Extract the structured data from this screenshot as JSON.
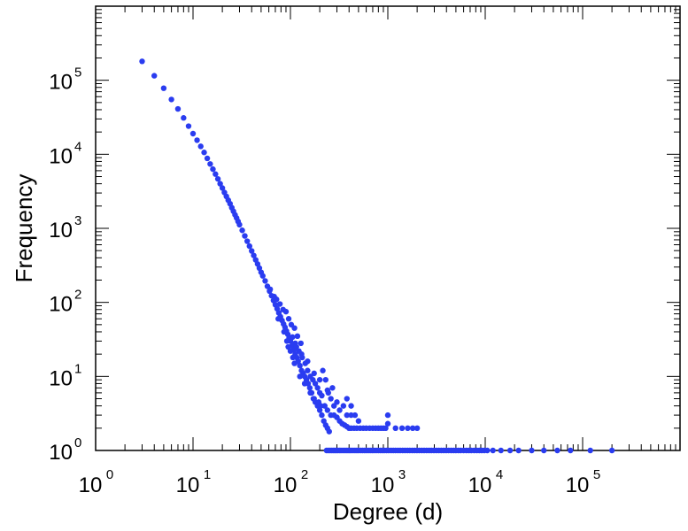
{
  "chart_data": {
    "type": "scatter",
    "xlabel": "Degree (d)",
    "ylabel": "Frequency",
    "x_scale": "log",
    "y_scale": "log",
    "xlim": [
      1,
      1000000
    ],
    "ylim": [
      1,
      1000000
    ],
    "grid": false,
    "legend": "none",
    "marker_color": "#2a3cf0",
    "x_ticks": [
      {
        "base": "10",
        "exp": "0"
      },
      {
        "base": "10",
        "exp": "1"
      },
      {
        "base": "10",
        "exp": "2"
      },
      {
        "base": "10",
        "exp": "3"
      },
      {
        "base": "10",
        "exp": "4"
      },
      {
        "base": "10",
        "exp": "5"
      }
    ],
    "y_ticks": [
      {
        "base": "10",
        "exp": "0"
      },
      {
        "base": "10",
        "exp": "1"
      },
      {
        "base": "10",
        "exp": "2"
      },
      {
        "base": "10",
        "exp": "3"
      },
      {
        "base": "10",
        "exp": "4"
      },
      {
        "base": "10",
        "exp": "5"
      }
    ],
    "points": [
      [
        3,
        180000
      ],
      [
        4,
        115000
      ],
      [
        5,
        78000
      ],
      [
        6,
        55000
      ],
      [
        7,
        41000
      ],
      [
        8,
        31000
      ],
      [
        9,
        24000
      ],
      [
        10,
        19000
      ],
      [
        11,
        15500
      ],
      [
        12,
        12800
      ],
      [
        13,
        10600
      ],
      [
        14,
        8800
      ],
      [
        15,
        7400
      ],
      [
        16,
        6300
      ],
      [
        17,
        5400
      ],
      [
        18,
        4650
      ],
      [
        19,
        4000
      ],
      [
        20,
        3500
      ],
      [
        21,
        3050
      ],
      [
        22,
        2700
      ],
      [
        23,
        2400
      ],
      [
        24,
        2150
      ],
      [
        25,
        1900
      ],
      [
        26,
        1700
      ],
      [
        27,
        1520
      ],
      [
        28,
        1380
      ],
      [
        29,
        1240
      ],
      [
        30,
        1120
      ],
      [
        32,
        940
      ],
      [
        34,
        790
      ],
      [
        36,
        670
      ],
      [
        38,
        575
      ],
      [
        40,
        495
      ],
      [
        42,
        430
      ],
      [
        44,
        375
      ],
      [
        46,
        330
      ],
      [
        48,
        290
      ],
      [
        50,
        255
      ],
      [
        52,
        228
      ],
      [
        55,
        195
      ],
      [
        58,
        165
      ],
      [
        61,
        142
      ],
      [
        64,
        123
      ],
      [
        67,
        106
      ],
      [
        70,
        93
      ],
      [
        73,
        82
      ],
      [
        76,
        72
      ],
      [
        79,
        64
      ],
      [
        82,
        57
      ],
      [
        85,
        51
      ],
      [
        88,
        46
      ],
      [
        91,
        41
      ],
      [
        94,
        37
      ],
      [
        97,
        33
      ],
      [
        100,
        30
      ],
      [
        104,
        26
      ],
      [
        108,
        23
      ],
      [
        112,
        20
      ],
      [
        116,
        18
      ],
      [
        120,
        16
      ],
      [
        125,
        14
      ],
      [
        130,
        12
      ],
      [
        135,
        11
      ],
      [
        140,
        10
      ],
      [
        146,
        9
      ],
      [
        152,
        8
      ],
      [
        158,
        7
      ],
      [
        165,
        6
      ],
      [
        172,
        5
      ],
      [
        180,
        4.5
      ],
      [
        190,
        4
      ],
      [
        200,
        3.5
      ],
      [
        210,
        3
      ],
      [
        220,
        2.5
      ],
      [
        230,
        2.2
      ],
      [
        240,
        2
      ],
      [
        250,
        1.8
      ],
      [
        68,
        120
      ],
      [
        72,
        110
      ],
      [
        78,
        95
      ],
      [
        84,
        80
      ],
      [
        90,
        75
      ],
      [
        96,
        60
      ],
      [
        102,
        50
      ],
      [
        110,
        45
      ],
      [
        118,
        35
      ],
      [
        128,
        28
      ],
      [
        62,
        150
      ],
      [
        75,
        60
      ],
      [
        86,
        40
      ],
      [
        92,
        30
      ],
      [
        100,
        22
      ],
      [
        106,
        18
      ],
      [
        112,
        28
      ],
      [
        122,
        22
      ],
      [
        132,
        18
      ],
      [
        142,
        15
      ],
      [
        150,
        12
      ],
      [
        160,
        10
      ],
      [
        170,
        9
      ],
      [
        180,
        8
      ],
      [
        190,
        7
      ],
      [
        200,
        6
      ],
      [
        210,
        5.5
      ],
      [
        215,
        12
      ],
      [
        230,
        9
      ],
      [
        245,
        6
      ],
      [
        95,
        25
      ],
      [
        110,
        15
      ],
      [
        125,
        10
      ],
      [
        140,
        8
      ],
      [
        160,
        6
      ],
      [
        175,
        5
      ],
      [
        195,
        4.5
      ],
      [
        205,
        4
      ],
      [
        225,
        4
      ],
      [
        240,
        3.5
      ],
      [
        260,
        3
      ],
      [
        280,
        3
      ],
      [
        300,
        2.8
      ],
      [
        320,
        2.5
      ],
      [
        340,
        2.3
      ],
      [
        360,
        2.2
      ],
      [
        380,
        2.1
      ],
      [
        400,
        2
      ],
      [
        260,
        5
      ],
      [
        280,
        4
      ],
      [
        300,
        4.5
      ],
      [
        320,
        3.5
      ],
      [
        350,
        4
      ],
      [
        380,
        3
      ],
      [
        420,
        3
      ],
      [
        460,
        3
      ],
      [
        500,
        2.5
      ],
      [
        380,
        5
      ],
      [
        420,
        4
      ],
      [
        240,
        6.5
      ],
      [
        270,
        7
      ],
      [
        200,
        9
      ],
      [
        175,
        11
      ],
      [
        150,
        16
      ],
      [
        130,
        20
      ],
      [
        115,
        25
      ],
      [
        105,
        34
      ],
      [
        420,
        2
      ],
      [
        450,
        2
      ],
      [
        480,
        2
      ],
      [
        520,
        2
      ],
      [
        560,
        2
      ],
      [
        600,
        2
      ],
      [
        650,
        2
      ],
      [
        700,
        2
      ],
      [
        750,
        2
      ],
      [
        800,
        2
      ],
      [
        850,
        2
      ],
      [
        900,
        2
      ],
      [
        950,
        2
      ],
      [
        1000,
        3
      ],
      [
        1000,
        2.3
      ],
      [
        1200,
        2
      ],
      [
        1400,
        2
      ],
      [
        1600,
        2
      ],
      [
        1800,
        2
      ],
      [
        2000,
        2
      ],
      [
        235,
        1
      ],
      [
        245,
        1
      ],
      [
        255,
        1
      ],
      [
        265,
        1
      ],
      [
        275,
        1
      ],
      [
        285,
        1
      ],
      [
        295,
        1
      ],
      [
        305,
        1
      ],
      [
        318,
        1
      ],
      [
        330,
        1
      ],
      [
        345,
        1
      ],
      [
        360,
        1
      ],
      [
        375,
        1
      ],
      [
        390,
        1
      ],
      [
        405,
        1
      ],
      [
        420,
        1
      ],
      [
        440,
        1
      ],
      [
        460,
        1
      ],
      [
        480,
        1
      ],
      [
        500,
        1
      ],
      [
        525,
        1
      ],
      [
        550,
        1
      ],
      [
        575,
        1
      ],
      [
        600,
        1
      ],
      [
        630,
        1
      ],
      [
        660,
        1
      ],
      [
        690,
        1
      ],
      [
        720,
        1
      ],
      [
        760,
        1
      ],
      [
        800,
        1
      ],
      [
        840,
        1
      ],
      [
        880,
        1
      ],
      [
        920,
        1
      ],
      [
        970,
        1
      ],
      [
        1020,
        1
      ],
      [
        1080,
        1
      ],
      [
        1140,
        1
      ],
      [
        1200,
        1
      ],
      [
        1270,
        1
      ],
      [
        1340,
        1
      ],
      [
        1420,
        1
      ],
      [
        1500,
        1
      ],
      [
        1590,
        1
      ],
      [
        1680,
        1
      ],
      [
        1780,
        1
      ],
      [
        1880,
        1
      ],
      [
        1990,
        1
      ],
      [
        2100,
        1
      ],
      [
        2230,
        1
      ],
      [
        2360,
        1
      ],
      [
        2500,
        1
      ],
      [
        2650,
        1
      ],
      [
        2800,
        1
      ],
      [
        2970,
        1
      ],
      [
        3150,
        1
      ],
      [
        3340,
        1
      ],
      [
        3540,
        1
      ],
      [
        3750,
        1
      ],
      [
        3980,
        1
      ],
      [
        4220,
        1
      ],
      [
        4470,
        1
      ],
      [
        4740,
        1
      ],
      [
        5000,
        1
      ],
      [
        5300,
        1
      ],
      [
        5600,
        1
      ],
      [
        6000,
        1
      ],
      [
        6400,
        1
      ],
      [
        6800,
        1
      ],
      [
        7200,
        1
      ],
      [
        7700,
        1
      ],
      [
        8200,
        1
      ],
      [
        8700,
        1
      ],
      [
        9200,
        1
      ],
      [
        9800,
        1
      ],
      [
        10500,
        1
      ],
      [
        12000,
        1
      ],
      [
        14500,
        1
      ],
      [
        18000,
        1
      ],
      [
        22000,
        1
      ],
      [
        30000,
        1
      ],
      [
        40000,
        1
      ],
      [
        55000,
        1
      ],
      [
        75000,
        1
      ],
      [
        120000,
        1
      ],
      [
        200000,
        1
      ]
    ]
  }
}
